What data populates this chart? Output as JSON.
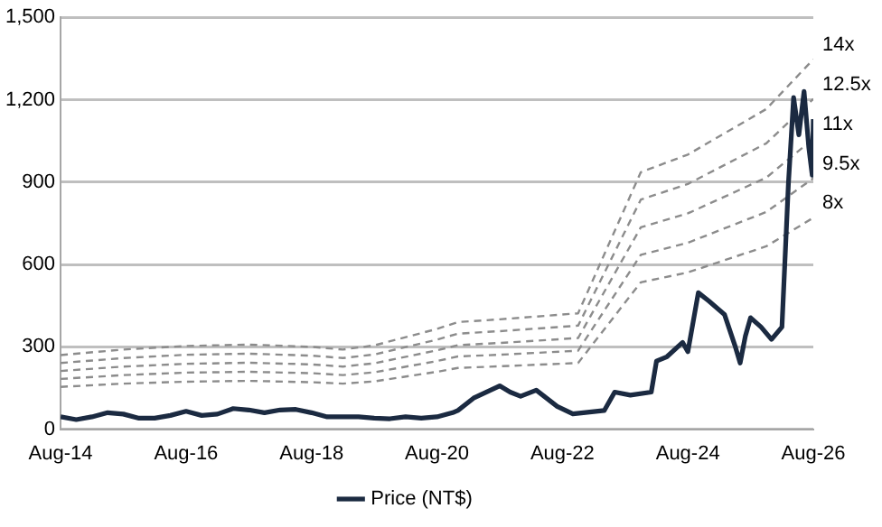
{
  "chart_data": {
    "type": "line",
    "ylim": [
      0,
      1500
    ],
    "yticks": [
      0,
      300,
      600,
      900,
      {
        "value": 1200,
        "label": "1,200"
      },
      {
        "value": 1500,
        "label": "1,500"
      }
    ],
    "xlim": [
      "2014-08",
      "2026-08"
    ],
    "xticks": [
      {
        "value": "2014-08",
        "label": "Aug-14"
      },
      {
        "value": "2016-08",
        "label": "Aug-16"
      },
      {
        "value": "2018-08",
        "label": "Aug-18"
      },
      {
        "value": "2020-08",
        "label": "Aug-20"
      },
      {
        "value": "2022-08",
        "label": "Aug-22"
      },
      {
        "value": "2024-08",
        "label": "Aug-24"
      },
      {
        "value": "2026-08",
        "label": "Aug-26"
      }
    ],
    "x": [
      "2014-08",
      "2015-08",
      "2016-08",
      "2017-08",
      "2018-08",
      "2019-02",
      "2019-08",
      "2020-08",
      "2020-12",
      "2021-08",
      "2022-11",
      "2023-11",
      "2024-08",
      "2025-11",
      "2026-08"
    ],
    "grid": "y",
    "legend": "bottom",
    "marker": "none",
    "series": [
      {
        "name": "Price (NT$)",
        "color": "#1b2a41",
        "line_style": "solid",
        "x": [
          "2014-08",
          "2014-11",
          "2015-02",
          "2015-05",
          "2015-08",
          "2015-11",
          "2016-02",
          "2016-05",
          "2016-08",
          "2016-11",
          "2017-02",
          "2017-05",
          "2017-08",
          "2017-11",
          "2018-02",
          "2018-05",
          "2018-08",
          "2018-11",
          "2019-02",
          "2019-05",
          "2019-08",
          "2019-11",
          "2020-02",
          "2020-05",
          "2020-08",
          "2020-11",
          "2020-12",
          "2021-03",
          "2021-08",
          "2021-10",
          "2021-12",
          "2022-03",
          "2022-07",
          "2022-10",
          "2023-04",
          "2023-06",
          "2023-09",
          "2024-01",
          "2024-02",
          "2024-04",
          "2024-07",
          "2024-08",
          "2024-10",
          "2024-12",
          "2025-03",
          "2025-05",
          "2025-06",
          "2025-07",
          "2025-08",
          "2025-10",
          "2025-12",
          "2026-02",
          "2026-03-08",
          "2026-04-08",
          "2026-05-08",
          "2026-06-08",
          "2026-07-05",
          "2026-07-25",
          "2026-08"
        ],
        "values": [
          45,
          35,
          45,
          60,
          55,
          40,
          40,
          50,
          65,
          50,
          55,
          75,
          70,
          60,
          70,
          72,
          60,
          45,
          45,
          45,
          40,
          38,
          45,
          40,
          45,
          60,
          68,
          113,
          158,
          135,
          120,
          142,
          83,
          56,
          68,
          135,
          124,
          135,
          248,
          264,
          316,
          282,
          497,
          467,
          418,
          305,
          241,
          339,
          406,
          372,
          327,
          372,
          892,
          1208,
          1072,
          1230,
          1027,
          925,
          1129
        ]
      },
      {
        "name": "14x",
        "color": "#8c8c8c",
        "line_style": "dashed",
        "values": [
          270,
          290,
          303,
          308,
          300,
          290,
          305,
          365,
          390,
          400,
          422,
          936,
          1000,
          1166,
          1347
        ]
      },
      {
        "name": "12.5x",
        "color": "#8c8c8c",
        "line_style": "dashed",
        "values": [
          241,
          259,
          271,
          275,
          268,
          259,
          272,
          326,
          348,
          357,
          377,
          836,
          893,
          1041,
          1203
        ]
      },
      {
        "name": "11x",
        "color": "#8c8c8c",
        "line_style": "dashed",
        "values": [
          212,
          228,
          238,
          242,
          236,
          228,
          240,
          287,
          306,
          314,
          332,
          735,
          786,
          916,
          1058
        ]
      },
      {
        "name": "9.5x",
        "color": "#8c8c8c",
        "line_style": "dashed",
        "values": [
          183,
          197,
          206,
          209,
          204,
          197,
          207,
          248,
          265,
          271,
          286,
          635,
          679,
          791,
          914
        ]
      },
      {
        "name": "8x",
        "color": "#8c8c8c",
        "line_style": "dashed",
        "values": [
          154,
          166,
          173,
          176,
          171,
          166,
          174,
          209,
          223,
          229,
          241,
          535,
          571,
          666,
          770
        ]
      }
    ]
  }
}
